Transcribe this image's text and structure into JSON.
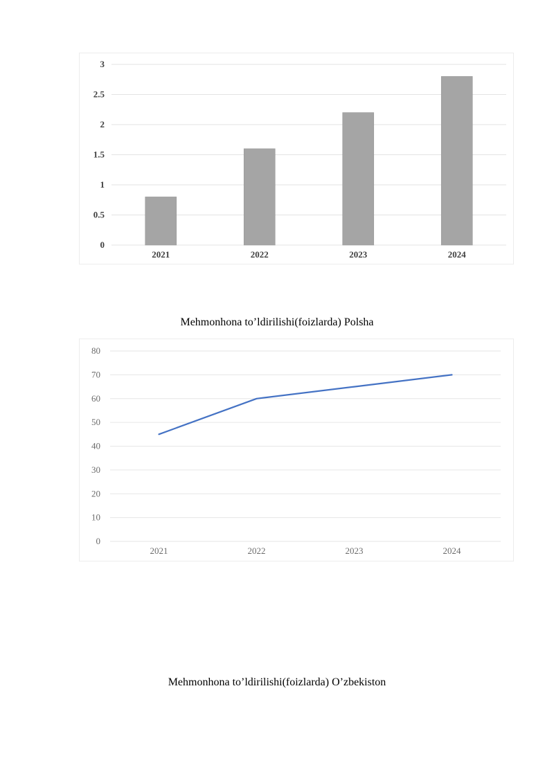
{
  "chart_data": [
    {
      "type": "bar",
      "categories": [
        "2021",
        "2022",
        "2023",
        "2024"
      ],
      "values": [
        0.8,
        1.6,
        2.2,
        2.8
      ],
      "ylim": [
        0,
        3
      ],
      "yticks": [
        "0",
        "0.5",
        "1",
        "1.5",
        "2",
        "2.5",
        "3"
      ],
      "grid": true,
      "bar_color": "#a5a5a5",
      "title": "",
      "xlabel": "",
      "ylabel": ""
    },
    {
      "type": "line",
      "categories": [
        "2021",
        "2022",
        "2023",
        "2024"
      ],
      "values": [
        45,
        60,
        65,
        70
      ],
      "ylim": [
        0,
        80
      ],
      "yticks": [
        "0",
        "10",
        "20",
        "30",
        "40",
        "50",
        "60",
        "70",
        "80"
      ],
      "grid": true,
      "line_color": "#4472c4",
      "title": "",
      "xlabel": "",
      "ylabel": ""
    }
  ],
  "captions": {
    "first": "Mehmonhona to’ldirilishi(foizlarda) Polsha",
    "second": "Mehmonhona to’ldirilishi(foizlarda) O’zbekiston"
  }
}
